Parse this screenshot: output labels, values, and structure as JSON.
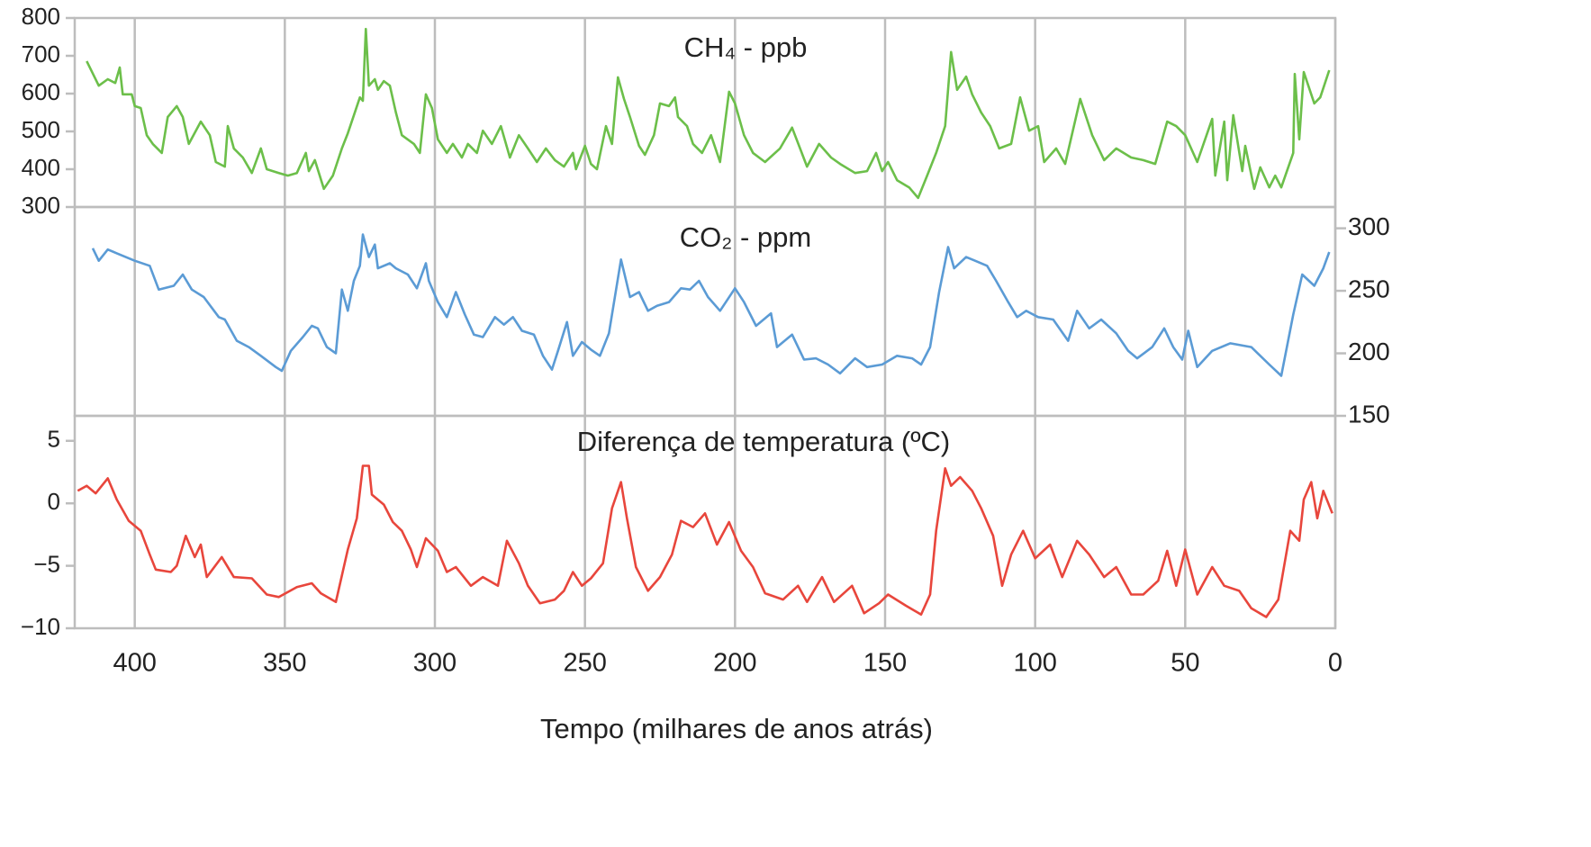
{
  "chart_data": [
    {
      "type": "line",
      "title": "CH₄ - ppb",
      "color": "#6cbf4a",
      "xlim": [
        420,
        0
      ],
      "ylim": [
        300,
        800
      ],
      "yticks": [
        300,
        400,
        500,
        600,
        700,
        800
      ],
      "y_axis_side": "left",
      "x": [
        416,
        412,
        409,
        406.5,
        405,
        404,
        401,
        400,
        398,
        396,
        394,
        391,
        389,
        386,
        384,
        382,
        378,
        375,
        373,
        370,
        369,
        367,
        364,
        361,
        358,
        356,
        352,
        349,
        346,
        343,
        342,
        340,
        337,
        334,
        331,
        329,
        325,
        324,
        323,
        322,
        320,
        319,
        317,
        315,
        313,
        311,
        307,
        305,
        303,
        301,
        299,
        296,
        294,
        291,
        289,
        286,
        284,
        281,
        278,
        275,
        272,
        269,
        266,
        263,
        260,
        257,
        254,
        253,
        250,
        248,
        246,
        243,
        241,
        239,
        237,
        235,
        232,
        230,
        227,
        225,
        222,
        220,
        219,
        216,
        214,
        211,
        208,
        205,
        202,
        200,
        197,
        194,
        190,
        185,
        181,
        176,
        172,
        168,
        165,
        160,
        156,
        153,
        151,
        149,
        146,
        142,
        139,
        136,
        133,
        130,
        128,
        126,
        123,
        121,
        118,
        115,
        112,
        108,
        105,
        102,
        99,
        97,
        93,
        90,
        85,
        81,
        77,
        73,
        68,
        64,
        60,
        56,
        53,
        50,
        46,
        41,
        40,
        37,
        36,
        34,
        31,
        30,
        27,
        25,
        22,
        20,
        18,
        14,
        13.5,
        12,
        10.5,
        7,
        5,
        2
      ],
      "values": [
        686,
        621,
        638,
        628,
        669,
        598,
        598,
        567,
        562,
        490,
        467,
        443,
        538,
        567,
        538,
        467,
        526,
        490,
        419,
        407,
        514,
        455,
        431,
        390,
        455,
        400,
        390,
        383,
        390,
        443,
        395,
        424,
        348,
        383,
        455,
        495,
        590,
        581,
        771,
        621,
        638,
        610,
        633,
        621,
        550,
        490,
        467,
        443,
        598,
        562,
        479,
        443,
        467,
        431,
        467,
        443,
        502,
        467,
        514,
        431,
        490,
        455,
        419,
        455,
        424,
        407,
        443,
        400,
        462,
        414,
        400,
        514,
        467,
        643,
        586,
        538,
        462,
        438,
        490,
        574,
        567,
        590,
        538,
        514,
        467,
        443,
        490,
        419,
        605,
        574,
        490,
        443,
        419,
        455,
        510,
        407,
        467,
        431,
        414,
        390,
        395,
        443,
        395,
        419,
        371,
        352,
        324,
        383,
        443,
        514,
        710,
        610,
        645,
        598,
        550,
        514,
        455,
        467,
        590,
        502,
        514,
        419,
        455,
        414,
        586,
        490,
        424,
        455,
        431,
        424,
        414,
        526,
        514,
        490,
        419,
        533,
        383,
        526,
        371,
        543,
        395,
        462,
        348,
        405,
        352,
        383,
        352,
        443,
        652,
        479,
        657,
        574,
        590,
        662
      ]
    },
    {
      "type": "line",
      "title": "CO₂ - ppm",
      "color": "#5b9bd5",
      "xlim": [
        420,
        0
      ],
      "ylim": [
        150,
        317
      ],
      "yticks": [
        150,
        200,
        250,
        300
      ],
      "y_axis_side": "right",
      "x": [
        414,
        412,
        409,
        406,
        400,
        395,
        392,
        387,
        384,
        381,
        377,
        372,
        370,
        366,
        362,
        358,
        353,
        351,
        348,
        344,
        341,
        339,
        336,
        333,
        331,
        329,
        327,
        325,
        324,
        322,
        320,
        319,
        315,
        313,
        309,
        306,
        303,
        302,
        299,
        296,
        293,
        290,
        287,
        284,
        280,
        277,
        274,
        271,
        267,
        264,
        261,
        259,
        256,
        254,
        251,
        248,
        245,
        242,
        238,
        235,
        232,
        229,
        226,
        222,
        218,
        215,
        212,
        209,
        205,
        200,
        197,
        193,
        188,
        186,
        181,
        177,
        173,
        169,
        165,
        160,
        156,
        151,
        146,
        141,
        138,
        135,
        132,
        129,
        127,
        123,
        120,
        116,
        113,
        109,
        106,
        103,
        99,
        94,
        89,
        86,
        82,
        78,
        73,
        69,
        66,
        61,
        57,
        54,
        51,
        49,
        46,
        41,
        35,
        28,
        22,
        18,
        14,
        11,
        7,
        4,
        2
      ],
      "values": [
        284,
        274,
        283,
        280,
        274,
        270,
        251,
        254,
        263,
        251,
        245,
        229,
        227,
        210,
        205,
        198,
        189,
        186,
        202,
        213,
        222,
        220,
        205,
        200,
        251,
        234,
        258,
        270,
        295,
        277,
        287,
        268,
        272,
        268,
        263,
        252,
        272,
        258,
        241,
        229,
        249,
        231,
        215,
        213,
        229,
        223,
        229,
        218,
        215,
        198,
        187,
        202,
        225,
        198,
        209,
        203,
        198,
        216,
        275,
        245,
        249,
        234,
        238,
        241,
        252,
        251,
        258,
        245,
        234,
        252,
        241,
        222,
        232,
        205,
        215,
        195,
        196,
        191,
        184,
        196,
        189,
        191,
        198,
        196,
        191,
        205,
        249,
        285,
        268,
        277,
        274,
        270,
        258,
        241,
        229,
        234,
        229,
        227,
        210,
        234,
        220,
        227,
        216,
        202,
        196,
        205,
        220,
        205,
        195,
        218,
        189,
        202,
        208,
        205,
        191,
        182,
        231,
        263,
        254,
        268,
        281
      ]
    },
    {
      "type": "line",
      "title": "Diferença de temperatura (ºC)",
      "color": "#e8463c",
      "xlim": [
        420,
        0
      ],
      "ylim": [
        -10,
        7
      ],
      "yticks": [
        {
          "value": -10,
          "label": "−10"
        },
        {
          "value": -5,
          "label": "−5"
        },
        0,
        5
      ],
      "y_axis_side": "left",
      "xticks": [
        400,
        350,
        300,
        250,
        200,
        150,
        100,
        50,
        0
      ],
      "xlabel": "Tempo (milhares de anos atrás)",
      "x": [
        419,
        416,
        413,
        409,
        406,
        402,
        398,
        395,
        393,
        388,
        386,
        383,
        380,
        378,
        376,
        371,
        367,
        361,
        356,
        352,
        346,
        341,
        338,
        333,
        329,
        326,
        324,
        322,
        321,
        317,
        314,
        311,
        308,
        306,
        303,
        299,
        296,
        293,
        288,
        284,
        279,
        276,
        272,
        269,
        265,
        260,
        257,
        254,
        251,
        248,
        244,
        241,
        238,
        236,
        233,
        229,
        225,
        221,
        218,
        214,
        210,
        206,
        202,
        198,
        194,
        190,
        184,
        179,
        176,
        171,
        167,
        161,
        157,
        152,
        149,
        143,
        138,
        135,
        133,
        130,
        128,
        125,
        121,
        118,
        114,
        111,
        108,
        104,
        100,
        95,
        91,
        86,
        82,
        77,
        73,
        68,
        64,
        59,
        56,
        53,
        50,
        46,
        41,
        37,
        32,
        28,
        23,
        19,
        15,
        12,
        10.5,
        8,
        6,
        4,
        1
      ],
      "values": [
        1.0,
        1.4,
        0.8,
        2.0,
        0.3,
        -1.4,
        -2.2,
        -4.1,
        -5.3,
        -5.5,
        -5.0,
        -2.6,
        -4.3,
        -3.3,
        -5.9,
        -4.3,
        -5.9,
        -6.0,
        -7.3,
        -7.5,
        -6.7,
        -6.4,
        -7.2,
        -7.9,
        -3.7,
        -1.2,
        3.0,
        3.0,
        0.7,
        -0.1,
        -1.5,
        -2.2,
        -3.7,
        -5.1,
        -2.8,
        -3.8,
        -5.5,
        -5.1,
        -6.6,
        -5.9,
        -6.6,
        -3.0,
        -4.8,
        -6.6,
        -8.0,
        -7.7,
        -7.0,
        -5.5,
        -6.6,
        -6.0,
        -4.8,
        -0.4,
        1.7,
        -1.2,
        -5.1,
        -7.0,
        -5.9,
        -4.1,
        -1.4,
        -1.9,
        -0.8,
        -3.3,
        -1.5,
        -3.8,
        -5.1,
        -7.2,
        -7.7,
        -6.6,
        -7.9,
        -5.9,
        -7.9,
        -6.6,
        -8.8,
        -8.0,
        -7.3,
        -8.2,
        -8.9,
        -7.3,
        -2.2,
        2.8,
        1.4,
        2.1,
        1.0,
        -0.4,
        -2.6,
        -6.6,
        -4.1,
        -2.2,
        -4.4,
        -3.3,
        -5.9,
        -3.0,
        -4.1,
        -5.9,
        -5.1,
        -7.3,
        -7.3,
        -6.2,
        -3.8,
        -6.6,
        -3.7,
        -7.3,
        -5.1,
        -6.6,
        -7.0,
        -8.4,
        -9.1,
        -7.7,
        -2.2,
        -3.0,
        0.3,
        1.7,
        -1.2,
        1.0,
        -0.8
      ]
    }
  ]
}
